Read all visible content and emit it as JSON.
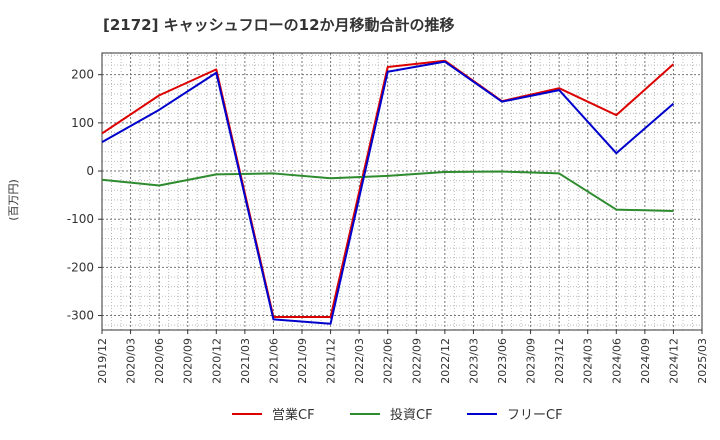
{
  "chart_data": {
    "type": "line",
    "title": "[2172]  キャッシュフローの12か月移動合計の推移",
    "ylabel": "(百万円)",
    "xlabel": "",
    "ylim": [
      -330,
      245
    ],
    "yticks": [
      200,
      100,
      0,
      -100,
      -200,
      -300
    ],
    "categories": [
      "2019/12",
      "2020/03",
      "2020/06",
      "2020/09",
      "2020/12",
      "2021/03",
      "2021/06",
      "2021/09",
      "2021/12",
      "2022/03",
      "2022/06",
      "2022/09",
      "2022/12",
      "2023/03",
      "2023/06",
      "2023/09",
      "2023/12",
      "2024/03",
      "2024/06",
      "2024/09",
      "2024/12",
      "2025/03"
    ],
    "grid": true,
    "legend_position": "bottom",
    "series": [
      {
        "name": "営業CF",
        "color": "#dd0000",
        "points": [
          [
            "2019/12",
            78
          ],
          [
            "2020/06",
            157
          ],
          [
            "2020/12",
            211
          ],
          [
            "2021/06",
            -303
          ],
          [
            "2021/12",
            -303
          ],
          [
            "2022/06",
            216
          ],
          [
            "2022/12",
            229
          ],
          [
            "2023/06",
            145
          ],
          [
            "2023/12",
            172
          ],
          [
            "2024/06",
            116
          ],
          [
            "2024/12",
            222
          ]
        ]
      },
      {
        "name": "投資CF",
        "color": "#2e8b2e",
        "points": [
          [
            "2019/12",
            -18
          ],
          [
            "2020/06",
            -30
          ],
          [
            "2020/12",
            -7
          ],
          [
            "2021/06",
            -5
          ],
          [
            "2021/12",
            -15
          ],
          [
            "2022/06",
            -10
          ],
          [
            "2022/12",
            -2
          ],
          [
            "2023/06",
            -1
          ],
          [
            "2023/12",
            -5
          ],
          [
            "2024/06",
            -80
          ],
          [
            "2024/12",
            -83
          ]
        ]
      },
      {
        "name": "フリーCF",
        "color": "#0000cc",
        "points": [
          [
            "2019/12",
            60
          ],
          [
            "2020/06",
            127
          ],
          [
            "2020/12",
            204
          ],
          [
            "2021/06",
            -308
          ],
          [
            "2021/12",
            -317
          ],
          [
            "2022/06",
            206
          ],
          [
            "2022/12",
            227
          ],
          [
            "2023/06",
            144
          ],
          [
            "2023/12",
            168
          ],
          [
            "2024/06",
            37
          ],
          [
            "2024/12",
            140
          ]
        ]
      }
    ]
  }
}
